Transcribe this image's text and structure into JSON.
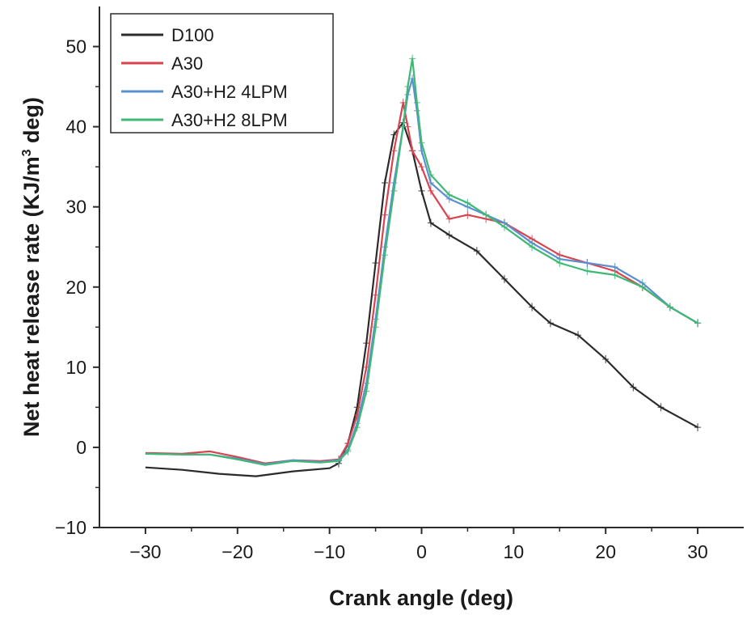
{
  "chart_data": {
    "type": "line",
    "title": "",
    "xlabel": "Crank angle (deg)",
    "ylabel_main": "Net heat release rate (KJ/m",
    "ylabel_sup": "3",
    "ylabel_tail": " deg)",
    "xlim": [
      -35,
      35
    ],
    "ylim": [
      -10,
      55
    ],
    "xticks": [
      -30,
      -20,
      -10,
      0,
      10,
      20,
      30
    ],
    "yticks": [
      -10,
      0,
      10,
      20,
      30,
      40,
      50
    ],
    "xtick_labels": [
      "−30",
      "−20",
      "−10",
      "0",
      "10",
      "20",
      "30"
    ],
    "ytick_labels": [
      "−10",
      "0",
      "10",
      "20",
      "30",
      "40",
      "50"
    ],
    "grid": false,
    "legend_position": "top-left",
    "series": [
      {
        "name": "D100",
        "color": "#2b2b2b",
        "points": [
          [
            -30,
            -2.5
          ],
          [
            -26,
            -2.8
          ],
          [
            -22,
            -3.3
          ],
          [
            -18,
            -3.6
          ],
          [
            -14,
            -3.0
          ],
          [
            -10,
            -2.6
          ],
          [
            -9,
            -2.0
          ],
          [
            -8,
            0.5
          ],
          [
            -7,
            5
          ],
          [
            -6,
            13
          ],
          [
            -5,
            23
          ],
          [
            -4,
            33
          ],
          [
            -3,
            39
          ],
          [
            -2,
            40.5
          ],
          [
            -1,
            37
          ],
          [
            0,
            32
          ],
          [
            1,
            28
          ],
          [
            3,
            26.5
          ],
          [
            6,
            24.5
          ],
          [
            9,
            21
          ],
          [
            12,
            17.5
          ],
          [
            14,
            15.5
          ],
          [
            17,
            14
          ],
          [
            20,
            11
          ],
          [
            23,
            7.5
          ],
          [
            26,
            5
          ],
          [
            30,
            2.5
          ]
        ]
      },
      {
        "name": "A30",
        "color": "#d9434e",
        "points": [
          [
            -30,
            -0.7
          ],
          [
            -26,
            -0.8
          ],
          [
            -23,
            -0.5
          ],
          [
            -20,
            -1.2
          ],
          [
            -17,
            -2.0
          ],
          [
            -14,
            -1.6
          ],
          [
            -11,
            -1.7
          ],
          [
            -9,
            -1.5
          ],
          [
            -8,
            0.5
          ],
          [
            -7,
            4
          ],
          [
            -6,
            10
          ],
          [
            -5,
            19
          ],
          [
            -4,
            29
          ],
          [
            -3,
            37
          ],
          [
            -2,
            43
          ],
          [
            -1.5,
            40
          ],
          [
            -1,
            37
          ],
          [
            0,
            35
          ],
          [
            1,
            32
          ],
          [
            3,
            28.5
          ],
          [
            5,
            29
          ],
          [
            7,
            28.5
          ],
          [
            9,
            28
          ],
          [
            12,
            26
          ],
          [
            15,
            24
          ],
          [
            18,
            23
          ],
          [
            21,
            22
          ],
          [
            24,
            20
          ],
          [
            27,
            17.5
          ],
          [
            30,
            15.5
          ]
        ]
      },
      {
        "name": "A30+H2 4LPM",
        "color": "#5a8fd0",
        "points": [
          [
            -30,
            -0.8
          ],
          [
            -26,
            -0.9
          ],
          [
            -23,
            -0.9
          ],
          [
            -20,
            -1.4
          ],
          [
            -17,
            -2.1
          ],
          [
            -14,
            -1.6
          ],
          [
            -11,
            -1.8
          ],
          [
            -9,
            -1.6
          ],
          [
            -8,
            -0.3
          ],
          [
            -7,
            3
          ],
          [
            -6,
            8
          ],
          [
            -5,
            16
          ],
          [
            -4,
            25
          ],
          [
            -3,
            33
          ],
          [
            -2,
            40
          ],
          [
            -1.5,
            44
          ],
          [
            -1,
            46
          ],
          [
            -0.5,
            42
          ],
          [
            0,
            37
          ],
          [
            1,
            33
          ],
          [
            3,
            31
          ],
          [
            5,
            30
          ],
          [
            7,
            29
          ],
          [
            9,
            28
          ],
          [
            12,
            25.5
          ],
          [
            15,
            23.5
          ],
          [
            18,
            23
          ],
          [
            21,
            22.5
          ],
          [
            24,
            20.5
          ],
          [
            27,
            17.5
          ],
          [
            30,
            15.5
          ]
        ]
      },
      {
        "name": "A30+H2 8LPM",
        "color": "#3fb875",
        "points": [
          [
            -30,
            -0.8
          ],
          [
            -26,
            -0.9
          ],
          [
            -23,
            -0.9
          ],
          [
            -20,
            -1.5
          ],
          [
            -17,
            -2.2
          ],
          [
            -14,
            -1.7
          ],
          [
            -11,
            -1.9
          ],
          [
            -9,
            -1.7
          ],
          [
            -8,
            -0.5
          ],
          [
            -7,
            2.5
          ],
          [
            -6,
            7
          ],
          [
            -5,
            15
          ],
          [
            -4,
            24
          ],
          [
            -3,
            32
          ],
          [
            -2,
            40
          ],
          [
            -1.5,
            45
          ],
          [
            -1,
            48.5
          ],
          [
            -0.5,
            43
          ],
          [
            0,
            38
          ],
          [
            1,
            34
          ],
          [
            3,
            31.5
          ],
          [
            5,
            30.5
          ],
          [
            7,
            29
          ],
          [
            9,
            27.5
          ],
          [
            12,
            25
          ],
          [
            15,
            23
          ],
          [
            18,
            22
          ],
          [
            21,
            21.5
          ],
          [
            24,
            20
          ],
          [
            27,
            17.5
          ],
          [
            30,
            15.5
          ]
        ]
      }
    ]
  }
}
